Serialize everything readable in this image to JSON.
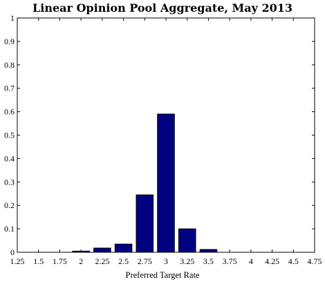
{
  "chart_data": {
    "type": "bar",
    "title": "Linear Opinion Pool Aggregate, May 2013",
    "xlabel": "Preferred Target Rate",
    "ylabel": "",
    "xlim": [
      1.25,
      4.75
    ],
    "ylim": [
      0,
      1
    ],
    "x_ticks": [
      "1.25",
      "1.5",
      "1.75",
      "2",
      "2.25",
      "2.5",
      "2.75",
      "3",
      "3.25",
      "3.5",
      "3.75",
      "4",
      "4.25",
      "4.5",
      "4.75"
    ],
    "y_ticks": [
      "0",
      "0.1",
      "0.2",
      "0.3",
      "0.4",
      "0.5",
      "0.6",
      "0.7",
      "0.8",
      "0.9",
      "1"
    ],
    "bar_width": 0.2,
    "x": [
      2.0,
      2.25,
      2.5,
      2.75,
      3.0,
      3.25,
      3.5
    ],
    "values": [
      0.005,
      0.018,
      0.035,
      0.245,
      0.59,
      0.1,
      0.012
    ],
    "bar_color": "#000080",
    "grid": false,
    "legend": "none"
  }
}
